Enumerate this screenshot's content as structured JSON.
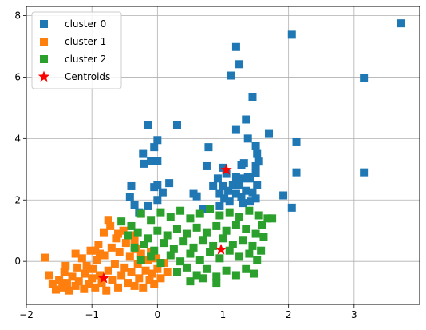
{
  "chart_data": {
    "type": "scatter",
    "title": "",
    "xlabel": "",
    "ylabel": "",
    "xlim": [
      -2,
      4
    ],
    "ylim": [
      -1.4,
      8.3
    ],
    "grid": true,
    "legend_position": "top-left",
    "x_ticks": [
      -2,
      -1,
      0,
      1,
      2,
      3
    ],
    "y_ticks": [
      0,
      2,
      4,
      6,
      8
    ],
    "series": [
      {
        "name": "cluster 0",
        "color": "#1f77b4",
        "marker": "square",
        "points": [
          [
            3.72,
            7.75
          ],
          [
            2.05,
            7.38
          ],
          [
            1.2,
            6.98
          ],
          [
            1.25,
            6.42
          ],
          [
            1.12,
            6.05
          ],
          [
            3.15,
            5.98
          ],
          [
            1.45,
            5.35
          ],
          [
            1.35,
            4.62
          ],
          [
            -0.15,
            4.45
          ],
          [
            0.3,
            4.45
          ],
          [
            1.7,
            4.15
          ],
          [
            1.2,
            4.28
          ],
          [
            0.0,
            3.95
          ],
          [
            1.38,
            4.0
          ],
          [
            1.5,
            3.75
          ],
          [
            2.12,
            3.88
          ],
          [
            -0.05,
            3.72
          ],
          [
            -0.22,
            3.5
          ],
          [
            1.52,
            3.5
          ],
          [
            0.78,
            3.72
          ],
          [
            -0.1,
            3.28
          ],
          [
            0.0,
            3.28
          ],
          [
            1.32,
            3.2
          ],
          [
            1.5,
            3.1
          ],
          [
            -0.2,
            3.18
          ],
          [
            0.75,
            3.1
          ],
          [
            1.28,
            3.15
          ],
          [
            1.0,
            3.05
          ],
          [
            1.55,
            3.25
          ],
          [
            2.12,
            2.9
          ],
          [
            3.15,
            2.9
          ],
          [
            1.38,
            2.75
          ],
          [
            1.5,
            2.88
          ],
          [
            1.42,
            2.7
          ],
          [
            1.05,
            2.85
          ],
          [
            1.2,
            2.75
          ],
          [
            1.3,
            2.7
          ],
          [
            0.92,
            2.7
          ],
          [
            0.18,
            2.55
          ],
          [
            -0.4,
            2.45
          ],
          [
            -0.05,
            2.42
          ],
          [
            0.0,
            2.5
          ],
          [
            1.0,
            2.45
          ],
          [
            1.15,
            2.5
          ],
          [
            1.25,
            2.48
          ],
          [
            0.85,
            2.45
          ],
          [
            1.52,
            2.5
          ],
          [
            0.08,
            2.25
          ],
          [
            0.55,
            2.2
          ],
          [
            0.95,
            2.2
          ],
          [
            1.08,
            2.3
          ],
          [
            1.2,
            2.2
          ],
          [
            1.35,
            2.3
          ],
          [
            1.45,
            2.25
          ],
          [
            -0.42,
            2.1
          ],
          [
            0.6,
            2.12
          ],
          [
            1.02,
            2.05
          ],
          [
            1.28,
            2.1
          ],
          [
            1.5,
            2.05
          ],
          [
            1.92,
            2.15
          ],
          [
            -0.35,
            1.85
          ],
          [
            -0.15,
            1.8
          ],
          [
            0.0,
            2.0
          ],
          [
            1.1,
            1.95
          ],
          [
            1.3,
            1.9
          ],
          [
            1.42,
            1.95
          ],
          [
            2.05,
            1.75
          ],
          [
            0.95,
            1.8
          ],
          [
            -0.28,
            1.6
          ],
          [
            0.7,
            1.7
          ]
        ]
      },
      {
        "name": "cluster 1",
        "color": "#ff7f0e",
        "marker": "square",
        "points": [
          [
            -1.72,
            0.12
          ],
          [
            -1.65,
            -0.45
          ],
          [
            -1.6,
            -0.75
          ],
          [
            -1.55,
            -0.92
          ],
          [
            -1.5,
            -0.6
          ],
          [
            -1.45,
            -0.85
          ],
          [
            -1.42,
            -0.35
          ],
          [
            -1.38,
            -0.7
          ],
          [
            -1.35,
            -0.95
          ],
          [
            -1.3,
            -0.5
          ],
          [
            -1.25,
            -0.8
          ],
          [
            -1.22,
            -0.2
          ],
          [
            -1.2,
            -0.65
          ],
          [
            -1.15,
            0.1
          ],
          [
            -1.12,
            -0.9
          ],
          [
            -1.1,
            -0.4
          ],
          [
            -1.05,
            -0.75
          ],
          [
            -1.02,
            0.35
          ],
          [
            -1.0,
            -0.55
          ],
          [
            -0.98,
            -0.25
          ],
          [
            -0.95,
            -0.85
          ],
          [
            -0.92,
            0.05
          ],
          [
            -0.9,
            0.55
          ],
          [
            -0.88,
            -0.45
          ],
          [
            -0.85,
            -0.7
          ],
          [
            -0.82,
            0.95
          ],
          [
            -0.8,
            0.2
          ],
          [
            -0.78,
            -0.95
          ],
          [
            -0.75,
            -0.3
          ],
          [
            -0.72,
            1.15
          ],
          [
            -0.7,
            0.45
          ],
          [
            -0.68,
            -0.6
          ],
          [
            -0.65,
            -0.1
          ],
          [
            -0.62,
            0.75
          ],
          [
            -0.6,
            -0.85
          ],
          [
            -0.58,
            0.3
          ],
          [
            -0.55,
            -0.45
          ],
          [
            -0.52,
            1.0
          ],
          [
            -0.5,
            -0.2
          ],
          [
            -0.48,
            0.6
          ],
          [
            -0.45,
            -0.7
          ],
          [
            -0.42,
            0.15
          ],
          [
            -0.4,
            -0.35
          ],
          [
            -0.38,
            0.85
          ],
          [
            -0.35,
            -0.8
          ],
          [
            -0.32,
            0.4
          ],
          [
            -0.3,
            -0.1
          ],
          [
            -0.28,
            -0.55
          ],
          [
            -0.25,
            0.25
          ],
          [
            -0.22,
            -0.85
          ],
          [
            -0.2,
            0.55
          ],
          [
            -0.18,
            -0.3
          ],
          [
            -0.15,
            0.05
          ],
          [
            -0.12,
            -0.6
          ],
          [
            -0.1,
            0.3
          ],
          [
            -0.08,
            -0.4
          ],
          [
            -0.05,
            -0.75
          ],
          [
            -0.02,
            0.1
          ],
          [
            0.0,
            -0.25
          ],
          [
            0.05,
            -0.55
          ],
          [
            0.1,
            -0.05
          ],
          [
            0.15,
            -0.35
          ],
          [
            -0.75,
            1.35
          ],
          [
            -1.25,
            0.25
          ],
          [
            -0.95,
            0.35
          ],
          [
            -1.4,
            -0.15
          ],
          [
            -0.6,
            0.9
          ],
          [
            -0.35,
            0.7
          ],
          [
            -1.08,
            -0.15
          ],
          [
            -0.88,
            0.25
          ]
        ]
      },
      {
        "name": "cluster 2",
        "color": "#2ca02c",
        "marker": "square",
        "points": [
          [
            -0.55,
            1.3
          ],
          [
            -0.4,
            1.15
          ],
          [
            -0.25,
            1.55
          ],
          [
            -0.1,
            1.35
          ],
          [
            0.05,
            1.6
          ],
          [
            0.2,
            1.45
          ],
          [
            0.35,
            1.65
          ],
          [
            0.5,
            1.4
          ],
          [
            0.65,
            1.55
          ],
          [
            0.8,
            1.7
          ],
          [
            0.95,
            1.5
          ],
          [
            1.1,
            1.6
          ],
          [
            1.25,
            1.45
          ],
          [
            1.4,
            1.65
          ],
          [
            1.55,
            1.5
          ],
          [
            1.68,
            1.4
          ],
          [
            -0.45,
            0.85
          ],
          [
            -0.3,
            0.95
          ],
          [
            -0.15,
            0.75
          ],
          [
            0.0,
            1.0
          ],
          [
            0.15,
            0.85
          ],
          [
            0.3,
            1.05
          ],
          [
            0.45,
            0.9
          ],
          [
            0.6,
            1.1
          ],
          [
            0.75,
            0.95
          ],
          [
            0.9,
            1.15
          ],
          [
            1.05,
            1.0
          ],
          [
            1.2,
            1.2
          ],
          [
            1.35,
            1.05
          ],
          [
            1.5,
            0.9
          ],
          [
            1.62,
            0.8
          ],
          [
            -0.35,
            0.45
          ],
          [
            -0.2,
            0.55
          ],
          [
            -0.05,
            0.35
          ],
          [
            0.1,
            0.6
          ],
          [
            0.25,
            0.4
          ],
          [
            0.4,
            0.65
          ],
          [
            0.55,
            0.45
          ],
          [
            0.7,
            0.7
          ],
          [
            0.85,
            0.5
          ],
          [
            1.0,
            0.75
          ],
          [
            1.15,
            0.55
          ],
          [
            1.3,
            0.7
          ],
          [
            1.45,
            0.5
          ],
          [
            1.58,
            0.35
          ],
          [
            -0.25,
            0.05
          ],
          [
            -0.1,
            0.15
          ],
          [
            0.05,
            -0.05
          ],
          [
            0.2,
            0.2
          ],
          [
            0.35,
            0.0
          ],
          [
            0.5,
            0.25
          ],
          [
            0.65,
            0.05
          ],
          [
            0.8,
            0.3
          ],
          [
            0.95,
            0.1
          ],
          [
            1.1,
            0.35
          ],
          [
            1.25,
            0.15
          ],
          [
            1.4,
            0.25
          ],
          [
            1.52,
            0.05
          ],
          [
            0.3,
            -0.35
          ],
          [
            0.45,
            -0.2
          ],
          [
            0.6,
            -0.45
          ],
          [
            0.75,
            -0.25
          ],
          [
            0.9,
            -0.5
          ],
          [
            1.05,
            -0.3
          ],
          [
            1.2,
            -0.45
          ],
          [
            1.35,
            -0.25
          ],
          [
            1.48,
            -0.4
          ],
          [
            0.5,
            -0.65
          ],
          [
            0.7,
            -0.55
          ],
          [
            0.9,
            -0.7
          ],
          [
            1.75,
            1.4
          ],
          [
            1.6,
            1.2
          ]
        ]
      },
      {
        "name": "Centroids",
        "color": "#ff0000",
        "marker": "star",
        "points": [
          [
            -0.82,
            -0.55
          ],
          [
            0.97,
            0.38
          ],
          [
            1.05,
            2.98
          ]
        ]
      }
    ]
  }
}
